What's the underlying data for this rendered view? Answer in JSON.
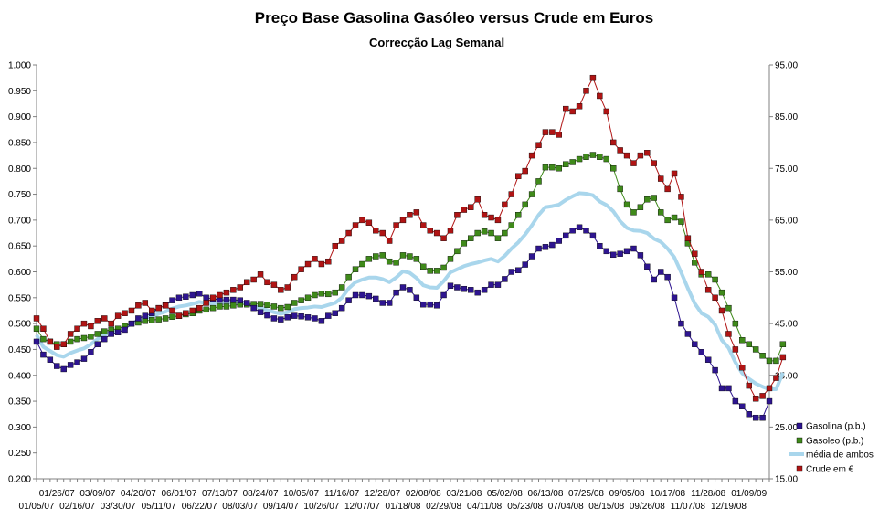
{
  "chart_data": {
    "type": "line",
    "title": "Preço Base Gasolina Gasóleo versus Crude em Euros",
    "subtitle": "Correcção Lag Semanal",
    "y_left": {
      "min": 0.2,
      "max": 1.0,
      "step": 0.05,
      "ticks": [
        "0.200",
        "0.250",
        "0.300",
        "0.350",
        "0.400",
        "0.450",
        "0.500",
        "0.550",
        "0.600",
        "0.650",
        "0.700",
        "0.750",
        "0.800",
        "0.850",
        "0.900",
        "0.950",
        "1.000"
      ]
    },
    "y_right": {
      "min": 15,
      "max": 95,
      "step": 10,
      "ticks": [
        "15.00",
        "25.00",
        "35.00",
        "45.00",
        "55.00",
        "65.00",
        "75.00",
        "85.00",
        "95.00"
      ]
    },
    "x_labels_row1": [
      "01/26/07",
      "03/09/07",
      "04/20/07",
      "06/01/07",
      "07/13/07",
      "08/24/07",
      "10/05/07",
      "11/16/07",
      "12/28/07",
      "02/08/08",
      "03/21/08",
      "05/02/08",
      "06/13/08",
      "07/25/08",
      "09/05/08",
      "10/17/08",
      "11/28/08",
      "01/09/09"
    ],
    "x_labels_row2": [
      "01/05/07",
      "02/16/07",
      "03/30/07",
      "05/11/07",
      "06/22/07",
      "08/03/07",
      "09/14/07",
      "10/26/07",
      "12/07/07",
      "01/18/08",
      "02/29/08",
      "04/11/08",
      "05/23/08",
      "07/04/08",
      "08/15/08",
      "09/26/08",
      "11/07/08",
      "12/19/08"
    ],
    "series": [
      {
        "name": "Gasolina (p.b.)",
        "axis": "left",
        "color": "#2e1590",
        "marker": "square",
        "values": [
          0.465,
          0.44,
          0.43,
          0.418,
          0.412,
          0.42,
          0.425,
          0.432,
          0.445,
          0.46,
          0.47,
          0.48,
          0.483,
          0.488,
          0.5,
          0.51,
          0.515,
          0.52,
          0.53,
          0.535,
          0.545,
          0.55,
          0.552,
          0.555,
          0.558,
          0.55,
          0.548,
          0.546,
          0.546,
          0.546,
          0.545,
          0.54,
          0.53,
          0.522,
          0.516,
          0.51,
          0.508,
          0.512,
          0.515,
          0.514,
          0.512,
          0.51,
          0.505,
          0.515,
          0.52,
          0.53,
          0.545,
          0.555,
          0.555,
          0.553,
          0.548,
          0.54,
          0.54,
          0.56,
          0.57,
          0.565,
          0.55,
          0.537,
          0.537,
          0.535,
          0.555,
          0.573,
          0.57,
          0.567,
          0.565,
          0.56,
          0.565,
          0.575,
          0.575,
          0.586,
          0.6,
          0.603,
          0.614,
          0.63,
          0.645,
          0.648,
          0.652,
          0.66,
          0.67,
          0.68,
          0.686,
          0.68,
          0.67,
          0.65,
          0.64,
          0.633,
          0.635,
          0.64,
          0.645,
          0.632,
          0.61,
          0.585,
          0.6,
          0.59,
          0.55,
          0.5,
          0.48,
          0.46,
          0.445,
          0.43,
          0.41,
          0.375,
          0.375,
          0.35,
          0.34,
          0.325,
          0.318,
          0.318,
          0.35
        ]
      },
      {
        "name": "Gasoleo (p.b.)",
        "axis": "left",
        "color": "#3f8a1a",
        "marker": "square",
        "values": [
          0.49,
          0.47,
          0.465,
          0.46,
          0.46,
          0.465,
          0.47,
          0.472,
          0.475,
          0.48,
          0.485,
          0.488,
          0.49,
          0.495,
          0.5,
          0.502,
          0.505,
          0.507,
          0.508,
          0.51,
          0.513,
          0.515,
          0.518,
          0.52,
          0.525,
          0.527,
          0.53,
          0.533,
          0.533,
          0.535,
          0.537,
          0.537,
          0.538,
          0.538,
          0.536,
          0.533,
          0.53,
          0.532,
          0.54,
          0.545,
          0.55,
          0.555,
          0.558,
          0.557,
          0.56,
          0.57,
          0.59,
          0.605,
          0.615,
          0.625,
          0.63,
          0.632,
          0.62,
          0.618,
          0.632,
          0.63,
          0.625,
          0.61,
          0.602,
          0.602,
          0.608,
          0.625,
          0.64,
          0.655,
          0.665,
          0.675,
          0.678,
          0.675,
          0.665,
          0.675,
          0.69,
          0.71,
          0.73,
          0.75,
          0.775,
          0.802,
          0.802,
          0.8,
          0.808,
          0.812,
          0.818,
          0.822,
          0.826,
          0.822,
          0.818,
          0.8,
          0.76,
          0.73,
          0.715,
          0.725,
          0.74,
          0.743,
          0.715,
          0.7,
          0.705,
          0.697,
          0.655,
          0.618,
          0.595,
          0.595,
          0.585,
          0.56,
          0.53,
          0.5,
          0.468,
          0.46,
          0.45,
          0.438,
          0.428,
          0.428,
          0.46
        ]
      },
      {
        "name": "média de ambos",
        "axis": "left",
        "color": "#a9d6ec",
        "marker": "none",
        "values": [
          0.478,
          0.455,
          0.447,
          0.439,
          0.436,
          0.443,
          0.448,
          0.452,
          0.46,
          0.47,
          0.478,
          0.484,
          0.487,
          0.492,
          0.5,
          0.506,
          0.51,
          0.514,
          0.519,
          0.523,
          0.529,
          0.533,
          0.535,
          0.538,
          0.542,
          0.539,
          0.539,
          0.54,
          0.54,
          0.541,
          0.541,
          0.539,
          0.534,
          0.53,
          0.526,
          0.522,
          0.519,
          0.522,
          0.528,
          0.53,
          0.531,
          0.533,
          0.532,
          0.536,
          0.54,
          0.55,
          0.568,
          0.58,
          0.585,
          0.589,
          0.589,
          0.586,
          0.58,
          0.589,
          0.601,
          0.598,
          0.588,
          0.574,
          0.57,
          0.569,
          0.582,
          0.599,
          0.605,
          0.611,
          0.615,
          0.618,
          0.622,
          0.625,
          0.62,
          0.631,
          0.645,
          0.657,
          0.672,
          0.69,
          0.71,
          0.725,
          0.727,
          0.73,
          0.739,
          0.746,
          0.752,
          0.751,
          0.748,
          0.736,
          0.729,
          0.717,
          0.698,
          0.685,
          0.68,
          0.679,
          0.675,
          0.664,
          0.658,
          0.645,
          0.628,
          0.599,
          0.568,
          0.539,
          0.52,
          0.513,
          0.498,
          0.468,
          0.453,
          0.425,
          0.404,
          0.393,
          0.384,
          0.378,
          0.373,
          0.373,
          0.405
        ]
      },
      {
        "name": "Crude em €",
        "axis": "right",
        "color": "#b01414",
        "marker": "square",
        "values": [
          46.0,
          44.0,
          41.5,
          40.5,
          41.0,
          43.0,
          44.0,
          45.0,
          44.5,
          45.5,
          46.0,
          45.0,
          46.5,
          47.0,
          47.5,
          48.5,
          49.0,
          47.5,
          48.0,
          48.5,
          47.5,
          46.5,
          47.0,
          47.5,
          48.0,
          49.0,
          50.0,
          50.5,
          51.0,
          51.5,
          52.0,
          53.0,
          53.5,
          54.5,
          53.0,
          52.5,
          51.5,
          52.0,
          54.0,
          55.5,
          56.5,
          57.5,
          56.5,
          57.0,
          60.0,
          61.0,
          62.5,
          64.0,
          65.0,
          64.5,
          63.0,
          62.5,
          61.0,
          64.0,
          65.0,
          66.0,
          66.5,
          64.0,
          63.0,
          62.5,
          61.5,
          63.0,
          66.0,
          67.0,
          67.5,
          69.0,
          66.0,
          65.5,
          65.0,
          68.0,
          70.0,
          73.5,
          74.5,
          77.5,
          79.5,
          82.0,
          82.0,
          81.5,
          86.5,
          86.0,
          87.0,
          90.0,
          92.5,
          89.0,
          86.0,
          80.0,
          78.5,
          77.5,
          76.0,
          77.5,
          78.0,
          76.0,
          73.0,
          71.0,
          74.0,
          69.5,
          61.5,
          58.5,
          55.0,
          51.5,
          50.0,
          47.5,
          43.0,
          40.0,
          36.5,
          33.0,
          30.5,
          31.0,
          32.5,
          34.5,
          38.5
        ]
      }
    ],
    "legend_position": "right"
  }
}
